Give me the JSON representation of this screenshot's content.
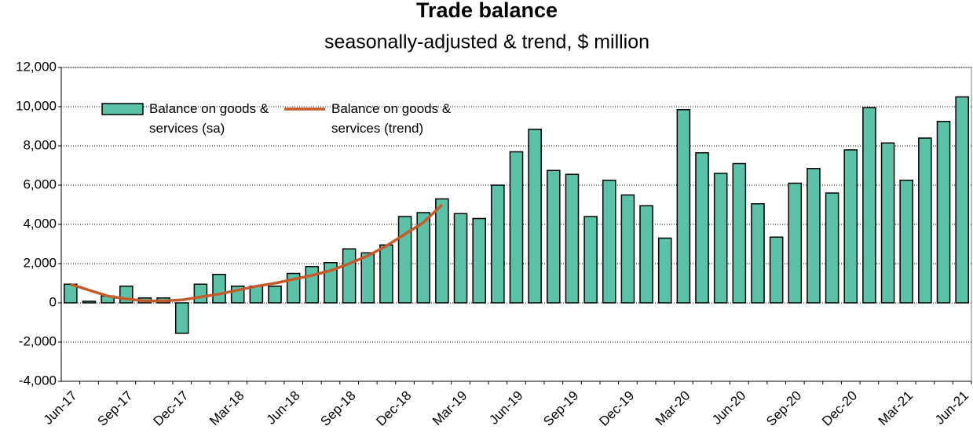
{
  "chart_data": {
    "type": "bar",
    "title": "Trade balance",
    "subtitle": "seasonally-adjusted & trend, $ million",
    "categories": [
      "Jun-17",
      null,
      null,
      "Sep-17",
      null,
      null,
      "Dec-17",
      null,
      null,
      "Mar-18",
      null,
      null,
      "Jun-18",
      null,
      null,
      "Sep-18",
      null,
      null,
      "Dec-18",
      null,
      null,
      "Mar-19",
      null,
      null,
      "Jun-19",
      null,
      null,
      "Sep-19",
      null,
      null,
      "Dec-19",
      null,
      null,
      "Mar-20",
      null,
      null,
      "Jun-20",
      null,
      null,
      "Sep-20",
      null,
      null,
      "Dec-20",
      null,
      null,
      "Mar-21",
      null,
      null,
      "Jun-21"
    ],
    "series": [
      {
        "name": "Balance on goods & services (sa)",
        "type": "bar",
        "color": "#5bc2a8",
        "values": [
          950,
          80,
          350,
          850,
          250,
          250,
          -1550,
          950,
          1450,
          850,
          850,
          850,
          1500,
          1850,
          2050,
          2750,
          2550,
          2950,
          4400,
          4600,
          5300,
          4550,
          4300,
          6000,
          7700,
          8850,
          6750,
          6550,
          4400,
          6250,
          5500,
          4950,
          3300,
          9850,
          7650,
          6600,
          7100,
          5050,
          3350,
          6100,
          6850,
          5600,
          7800,
          9950,
          8150,
          6250,
          8400,
          9250,
          10500
        ]
      },
      {
        "name": "Balance on goods & services (trend)",
        "type": "line",
        "color": "#c55a2b",
        "values": [
          950,
          650,
          350,
          200,
          100,
          100,
          150,
          300,
          450,
          650,
          850,
          1000,
          1200,
          1400,
          1650,
          2000,
          2400,
          2900,
          3500,
          4100,
          5000,
          null,
          null,
          null,
          null,
          null,
          null,
          null,
          null,
          null,
          null,
          null,
          null,
          null,
          null,
          null,
          null,
          null,
          null,
          null,
          null,
          null,
          null,
          null,
          null,
          null,
          null,
          null,
          null
        ]
      }
    ],
    "ylim": [
      -4000,
      12000
    ],
    "yticks": [
      {
        "value": -4000,
        "label": "-4,000"
      },
      {
        "value": -2000,
        "label": "-2,000"
      },
      0,
      {
        "value": 2000,
        "label": "2,000"
      },
      {
        "value": 4000,
        "label": "4,000"
      },
      {
        "value": 6000,
        "label": "6,000"
      },
      {
        "value": 8000,
        "label": "8,000"
      },
      {
        "value": 10000,
        "label": "10,000"
      },
      {
        "value": 12000,
        "label": "12,000"
      }
    ],
    "grid": true,
    "legend": "top-left"
  }
}
